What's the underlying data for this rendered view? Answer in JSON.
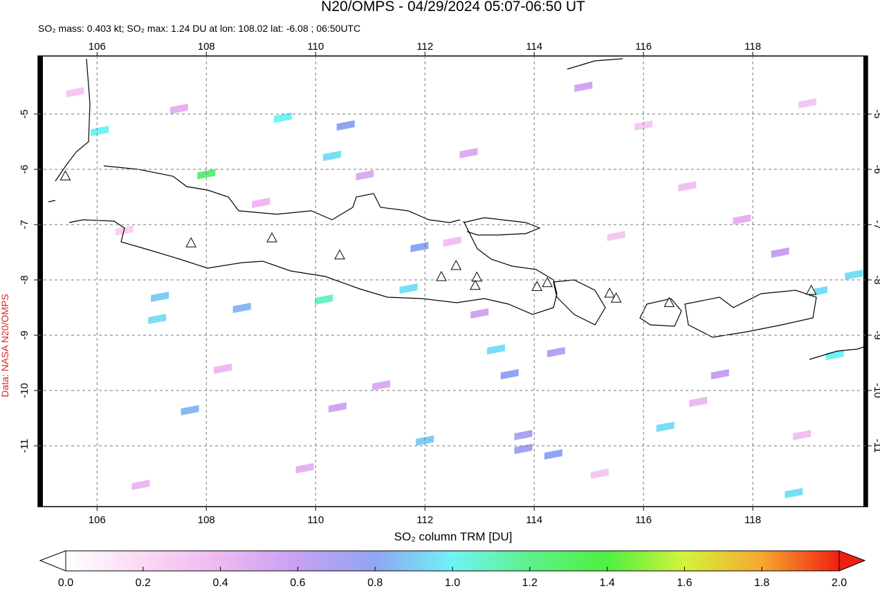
{
  "chart_data": {
    "type": "map",
    "title": "N20/OMPS - 04/29/2024 05:07-06:50 UT",
    "subtitle": "SO₂ mass: 0.403 kt; SO₂ max: 1.24 DU at lon: 108.02 lat: -6.08 ; 06:50UTC",
    "credit": "Data: NASA N20/OMPS",
    "xlim": [
      104.92,
      120.1
    ],
    "ylim": [
      -12.1,
      -3.95
    ],
    "xticks": [
      106,
      108,
      110,
      112,
      114,
      116,
      118
    ],
    "yticks": [
      -5,
      -6,
      -7,
      -8,
      -9,
      -10,
      -11
    ],
    "grid": true,
    "pixels": {
      "lon": [
        108.0,
        109.4,
        110.15,
        111.7,
        113.3,
        106.05,
        110.3,
        112.0,
        116.4,
        118.75,
        119.5,
        119.85,
        119.2,
        110.55,
        113.55,
        111.9,
        113.8,
        114.35,
        113.8,
        107.15,
        107.7,
        107.1,
        108.65,
        114.4,
        117.4,
        105.6,
        107.5,
        109.0,
        110.9,
        112.5,
        114.9,
        116.0,
        117.8,
        118.5,
        106.5,
        108.3,
        111.2,
        113.0,
        115.5,
        117.0,
        118.9,
        109.8,
        112.8,
        115.2,
        106.8,
        110.4,
        116.8,
        119.0
      ],
      "lat": [
        -6.08,
        -5.06,
        -8.35,
        -8.15,
        -9.25,
        -5.3,
        -5.75,
        -10.9,
        -10.65,
        -11.85,
        -9.35,
        -7.9,
        -8.2,
        -5.2,
        -9.7,
        -7.4,
        -11.05,
        -11.15,
        -10.8,
        -8.3,
        -10.35,
        -8.7,
        -8.5,
        -9.3,
        -9.7,
        -4.6,
        -4.9,
        -6.6,
        -6.1,
        -7.3,
        -4.5,
        -5.2,
        -6.9,
        -7.5,
        -7.1,
        -9.6,
        -9.9,
        -8.6,
        -7.2,
        -10.2,
        -10.8,
        -11.4,
        -5.7,
        -11.5,
        -11.7,
        -10.3,
        -6.3,
        -4.8
      ],
      "values": [
        1.24,
        1.0,
        1.1,
        0.95,
        0.95,
        1.0,
        0.95,
        0.9,
        0.95,
        0.95,
        1.0,
        0.95,
        0.95,
        0.8,
        0.8,
        0.8,
        0.75,
        0.8,
        0.7,
        0.9,
        0.85,
        0.95,
        0.85,
        0.65,
        0.6,
        0.3,
        0.45,
        0.4,
        0.5,
        0.35,
        0.55,
        0.3,
        0.45,
        0.6,
        0.25,
        0.4,
        0.5,
        0.55,
        0.3,
        0.4,
        0.35,
        0.45,
        0.5,
        0.3,
        0.4,
        0.55,
        0.35,
        0.3
      ]
    },
    "volcanoes": {
      "lon": [
        105.42,
        107.72,
        109.2,
        110.44,
        112.3,
        112.57,
        112.95,
        112.92,
        114.05,
        114.24,
        115.38,
        115.5,
        116.47,
        119.07
      ],
      "lat": [
        -6.13,
        -7.34,
        -7.25,
        -7.56,
        -7.95,
        -7.75,
        -7.96,
        -8.11,
        -8.13,
        -8.06,
        -8.25,
        -8.34,
        -8.42,
        -8.2
      ]
    },
    "colorbar": {
      "label": "SO₂ column TRM [DU]",
      "ticks": [
        {
          "value": 0,
          "label": "0.0"
        },
        0.2,
        0.4,
        0.6,
        0.8,
        {
          "value": 1,
          "label": "1.0"
        },
        1.2,
        1.4,
        1.6,
        1.8,
        {
          "value": 2,
          "label": "2.0"
        }
      ],
      "colors": [
        "#ffffff",
        "#fbd8f3",
        "#eeb8f2",
        "#c6a0f2",
        "#8fa5f3",
        "#6ff3f3",
        "#5ff08a",
        "#4ef040",
        "#d4f23c",
        "#f5a830",
        "#f02010"
      ]
    }
  }
}
